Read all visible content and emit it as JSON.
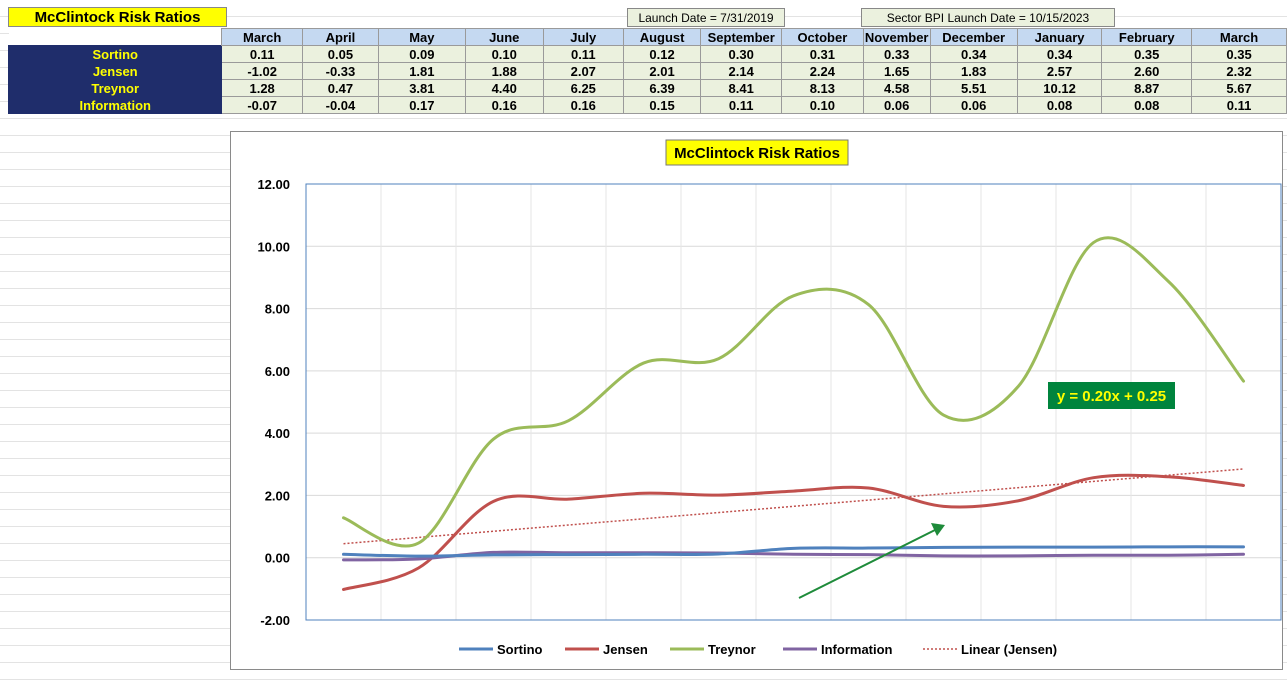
{
  "sheet": {
    "title": "McClintock Risk Ratios",
    "launch_date": "Launch Date = 7/31/2019",
    "sector_launch_date": "Sector BPI Launch Date = 10/15/2023",
    "months": [
      "March",
      "April",
      "May",
      "June",
      "July",
      "August",
      "September",
      "October",
      "November",
      "December",
      "January",
      "February",
      "March"
    ],
    "rows": [
      {
        "label": "Sortino",
        "values": [
          "0.11",
          "0.05",
          "0.09",
          "0.10",
          "0.11",
          "0.12",
          "0.30",
          "0.31",
          "0.33",
          "0.34",
          "0.34",
          "0.35",
          "0.35"
        ]
      },
      {
        "label": "Jensen",
        "values": [
          "-1.02",
          "-0.33",
          "1.81",
          "1.88",
          "2.07",
          "2.01",
          "2.14",
          "2.24",
          "1.65",
          "1.83",
          "2.57",
          "2.60",
          "2.32"
        ]
      },
      {
        "label": "Treynor",
        "values": [
          "1.28",
          "0.47",
          "3.81",
          "4.40",
          "6.25",
          "6.39",
          "8.41",
          "8.13",
          "4.58",
          "5.51",
          "10.12",
          "8.87",
          "5.67"
        ]
      },
      {
        "label": "Information",
        "values": [
          "-0.07",
          "-0.04",
          "0.17",
          "0.16",
          "0.16",
          "0.15",
          "0.11",
          "0.10",
          "0.06",
          "0.06",
          "0.08",
          "0.08",
          "0.11"
        ]
      }
    ]
  },
  "chart_data": {
    "type": "line",
    "title": "McClintock Risk Ratios",
    "x": [
      1,
      2,
      3,
      4,
      5,
      6,
      7,
      8,
      9,
      10,
      11,
      12,
      13
    ],
    "ylim": [
      -2,
      12
    ],
    "yticks": [
      "-2.00",
      "0.00",
      "2.00",
      "4.00",
      "6.00",
      "8.00",
      "10.00",
      "12.00"
    ],
    "grid": true,
    "legend_position": "bottom",
    "series": [
      {
        "name": "Sortino",
        "color": "#4f81bd",
        "values": [
          0.11,
          0.05,
          0.09,
          0.1,
          0.11,
          0.12,
          0.3,
          0.31,
          0.33,
          0.34,
          0.34,
          0.35,
          0.35
        ]
      },
      {
        "name": "Jensen",
        "color": "#c0504d",
        "values": [
          -1.02,
          -0.33,
          1.81,
          1.88,
          2.07,
          2.01,
          2.14,
          2.24,
          1.65,
          1.83,
          2.57,
          2.6,
          2.32
        ]
      },
      {
        "name": "Treynor",
        "color": "#9bbb59",
        "values": [
          1.28,
          0.47,
          3.81,
          4.4,
          6.25,
          6.39,
          8.41,
          8.13,
          4.58,
          5.51,
          10.12,
          8.87,
          5.67
        ]
      },
      {
        "name": "Information",
        "color": "#8064a2",
        "values": [
          -0.07,
          -0.04,
          0.17,
          0.16,
          0.16,
          0.15,
          0.11,
          0.1,
          0.06,
          0.06,
          0.08,
          0.08,
          0.11
        ]
      }
    ],
    "trendline": {
      "name": "Linear (Jensen)",
      "color": "#c0504d",
      "slope": 0.2,
      "intercept": 0.25,
      "label": "y = 0.20x + 0.25",
      "label_bg": "#00843d",
      "label_color": "#ffff00"
    },
    "title_bg": "#ffff00",
    "arrow_color": "#1e8b3a"
  }
}
